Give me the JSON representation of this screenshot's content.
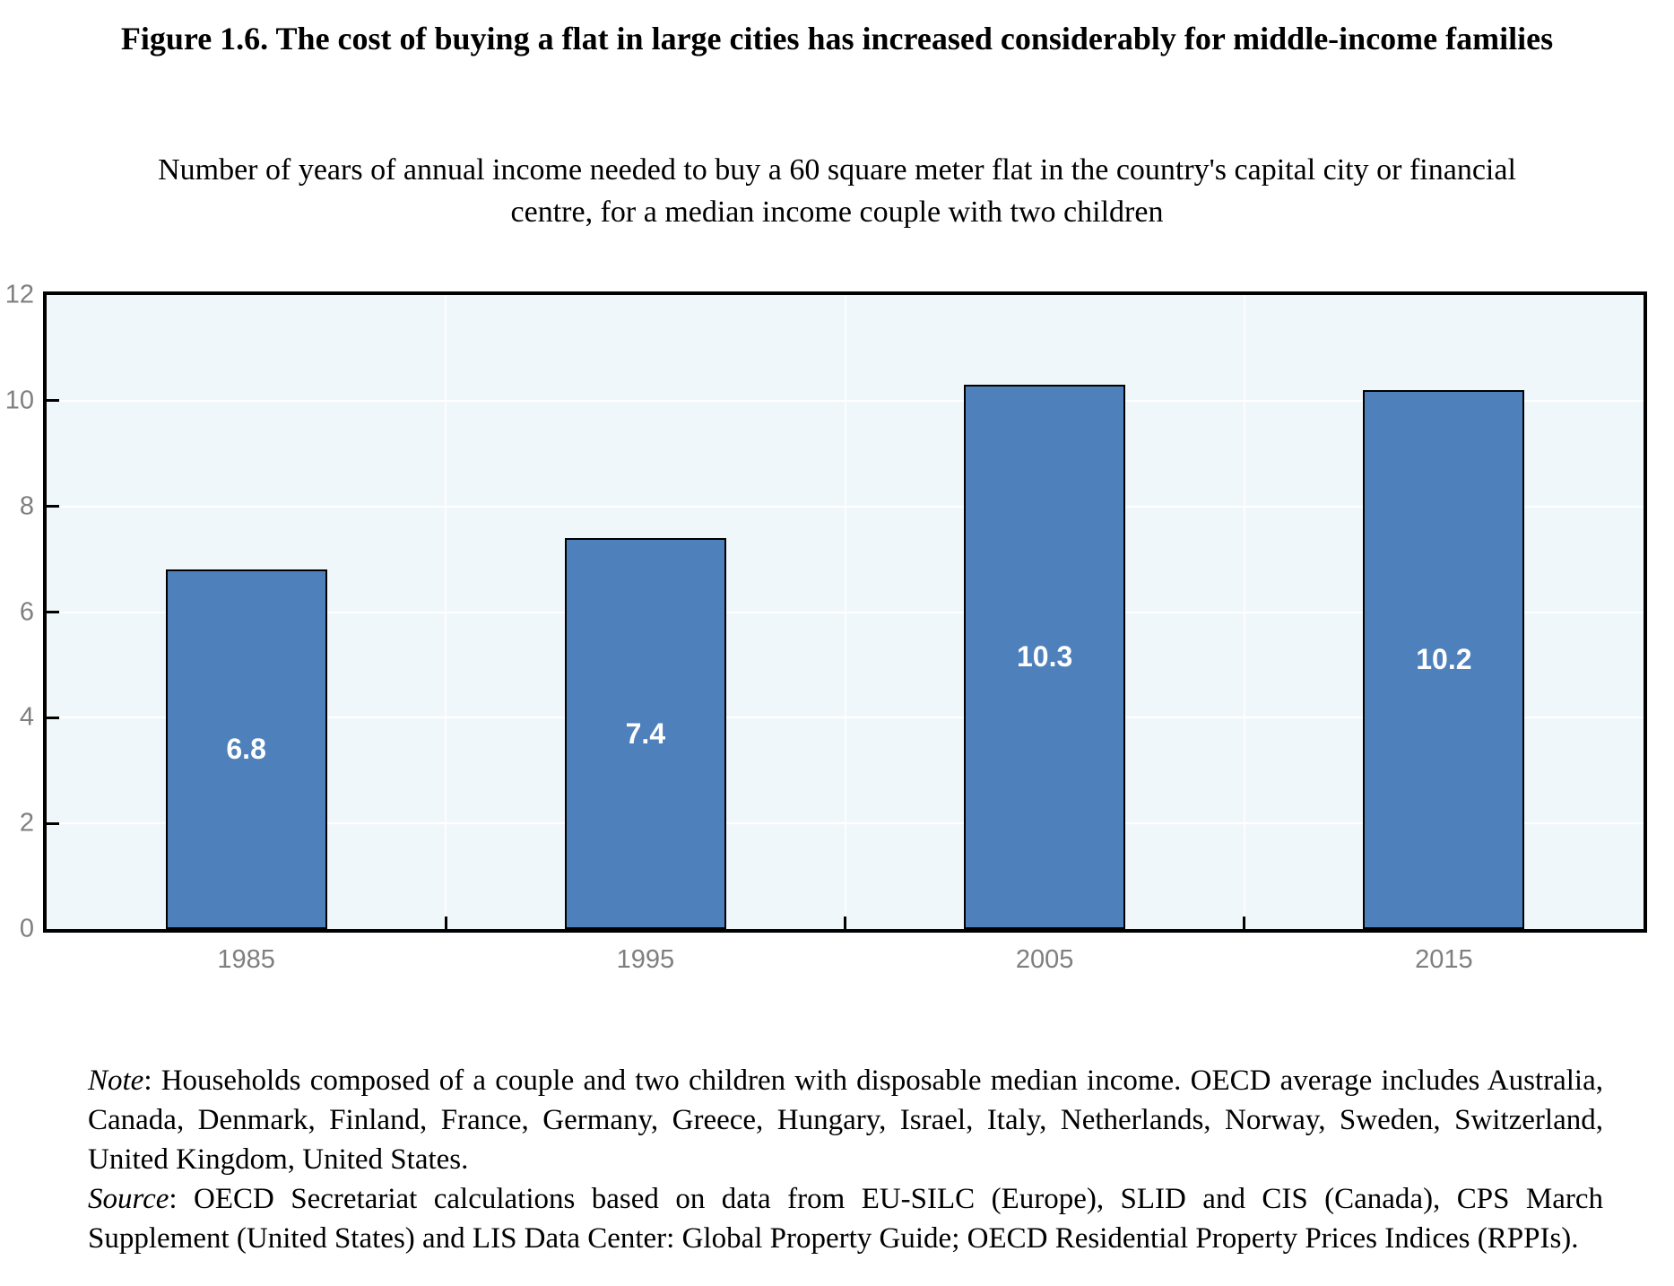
{
  "header": {
    "title": "Figure 1.6. The cost of buying a flat in large cities has increased considerably for middle-income families",
    "subtitle": "Number of years of annual income needed to buy a 60 square meter flat in the country's capital city or financial centre, for a median income couple with two children"
  },
  "chart_data": {
    "type": "bar",
    "categories": [
      "1985",
      "1995",
      "2005",
      "2015"
    ],
    "values": [
      6.8,
      7.4,
      10.3,
      10.2
    ],
    "data_labels": [
      "6.8",
      "7.4",
      "10.3",
      "10.2"
    ],
    "title": "",
    "xlabel": "",
    "ylabel": "",
    "ylim": [
      0,
      12
    ],
    "yticks": [
      0,
      2,
      4,
      6,
      8,
      10,
      12
    ],
    "grid": true,
    "legend": "none",
    "colors": {
      "bar_fill": "#4e80bc",
      "bar_border": "#000000",
      "plot_background": "#f0f7fa",
      "gridline": "#ffffff",
      "axis_frame": "#000000",
      "axis_tick_label": "#7f7f7f",
      "data_label": "#ffffff"
    }
  },
  "notes": {
    "note_label": "Note",
    "note_text": ": Households composed of a couple and two children with disposable median income. OECD average includes Australia, Canada, Denmark, Finland, France, Germany, Greece, Hungary, Israel, Italy, Netherlands, Norway, Sweden, Switzerland, United Kingdom, United States.",
    "source_label": "Source",
    "source_text": ": OECD Secretariat calculations based on data from EU-SILC (Europe), SLID and CIS (Canada), CPS March Supplement (United States) and LIS Data Center: Global Property Guide; OECD Residential Property Prices Indices (RPPIs)."
  }
}
